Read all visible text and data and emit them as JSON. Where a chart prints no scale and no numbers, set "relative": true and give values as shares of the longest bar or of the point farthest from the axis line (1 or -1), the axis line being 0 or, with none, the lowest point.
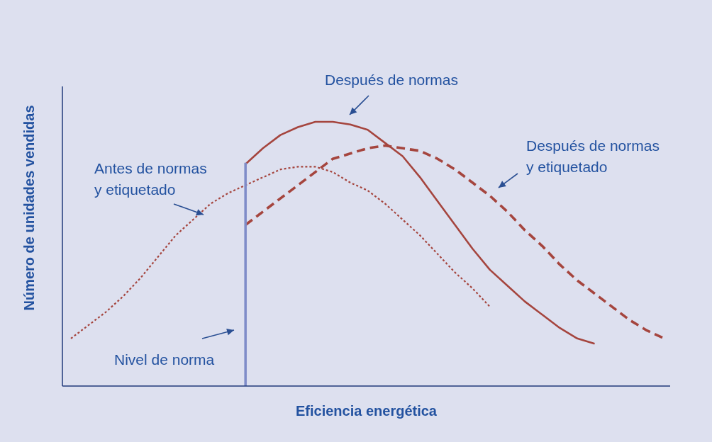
{
  "chart_data": {
    "type": "line",
    "xlabel": "Eficiencia energética",
    "ylabel": "Número de unidades vendidas",
    "relative": true,
    "categories": [
      null,
      null,
      null,
      null,
      null,
      null,
      null,
      null,
      null,
      null,
      null,
      null,
      null,
      null,
      null,
      null,
      null,
      null,
      null,
      null,
      null,
      null,
      null,
      null,
      null,
      null,
      null,
      null,
      null,
      null,
      null,
      null,
      null,
      null,
      null
    ],
    "series": [
      {
        "name": "Antes de normas y etiquetado",
        "color": "#a5453e",
        "line_style": "dotted",
        "values": [
          0.18,
          0.23,
          0.28,
          0.34,
          0.41,
          0.49,
          0.57,
          0.63,
          0.69,
          0.73,
          0.76,
          0.79,
          0.82,
          0.83,
          0.83,
          0.81,
          0.77,
          0.74,
          0.69,
          0.63,
          0.57,
          0.5,
          0.43,
          0.37,
          0.3,
          null,
          null,
          null,
          null,
          null,
          null,
          null,
          null,
          null,
          null
        ]
      },
      {
        "name": "Después de normas",
        "color": "#a5453e",
        "line_style": "solid",
        "values": [
          null,
          null,
          null,
          null,
          null,
          null,
          null,
          null,
          null,
          null,
          0.84,
          0.9,
          0.95,
          0.98,
          1.0,
          1.0,
          0.99,
          0.97,
          0.92,
          0.87,
          0.79,
          0.7,
          0.61,
          0.52,
          0.44,
          0.38,
          0.32,
          0.27,
          0.22,
          0.18,
          0.16,
          null,
          null,
          null,
          null
        ]
      },
      {
        "name": "Después de normas y etiquetado",
        "color": "#a5453e",
        "line_style": "dashed",
        "values": [
          null,
          null,
          null,
          null,
          null,
          null,
          null,
          null,
          null,
          null,
          0.61,
          0.66,
          0.71,
          0.76,
          0.81,
          0.86,
          0.88,
          0.9,
          0.91,
          0.9,
          0.89,
          0.86,
          0.82,
          0.77,
          0.72,
          0.66,
          0.59,
          0.53,
          0.46,
          0.4,
          0.35,
          0.3,
          0.25,
          0.21,
          0.18
        ]
      }
    ],
    "ref_lines": [
      {
        "axis": "x",
        "label": "Nivel de norma",
        "color": "#7f8cc8"
      }
    ]
  }
}
